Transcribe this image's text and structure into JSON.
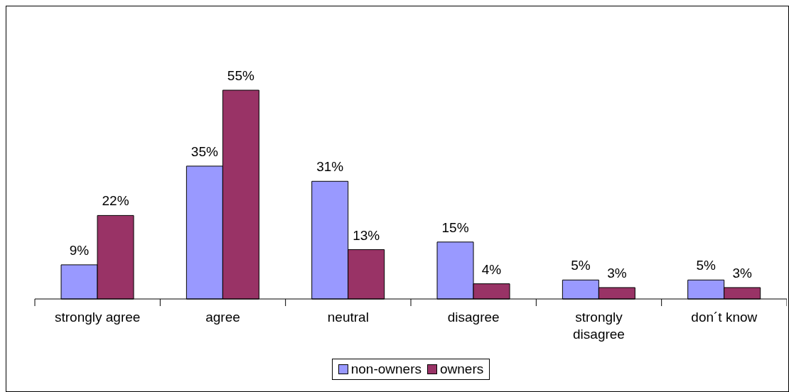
{
  "chart_data": {
    "type": "bar",
    "categories": [
      "strongly agree",
      "agree",
      "neutral",
      "disagree",
      "strongly disagree",
      "don´t know"
    ],
    "series": [
      {
        "name": "non-owners",
        "color": "#9999ff",
        "values": [
          9,
          35,
          31,
          15,
          5,
          5
        ],
        "value_labels": [
          "9%",
          "35%",
          "31%",
          "15%",
          "5%",
          "5%"
        ]
      },
      {
        "name": "owners",
        "color": "#993366",
        "values": [
          22,
          55,
          13,
          4,
          3,
          3
        ],
        "value_labels": [
          "22%",
          "55%",
          "13%",
          "4%",
          "3%",
          "3%"
        ]
      }
    ],
    "legend": "bottom"
  }
}
